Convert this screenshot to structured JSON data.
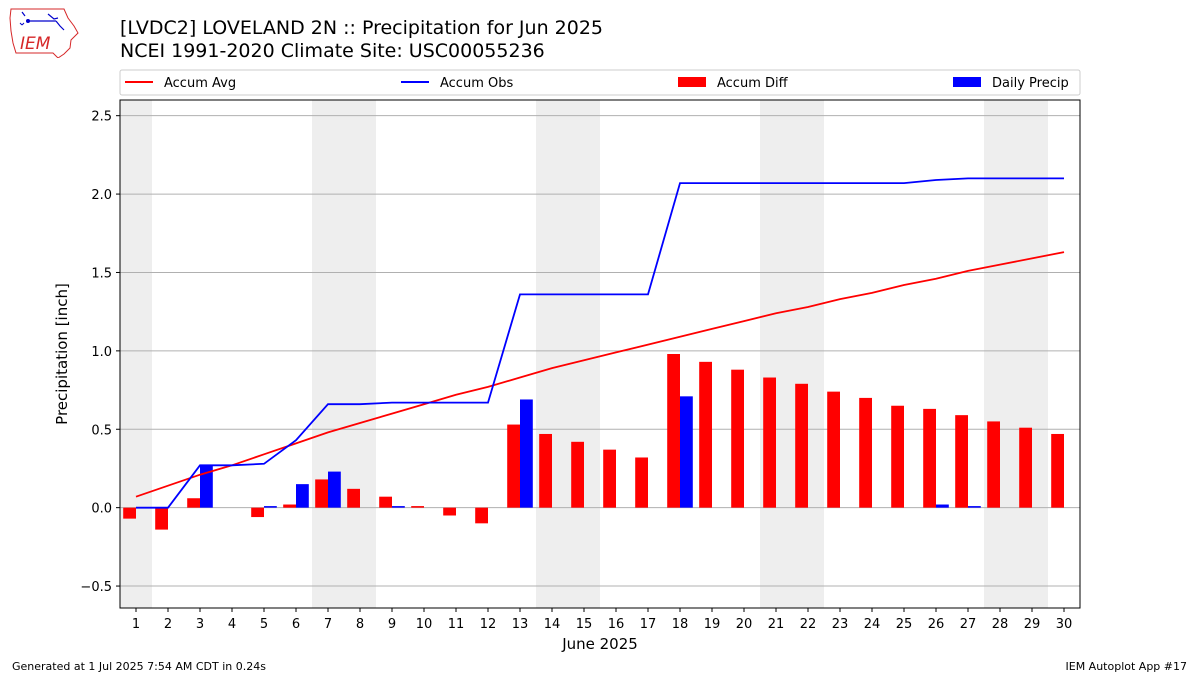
{
  "header": {
    "title_line1": "[LVDC2] LOVELAND 2N :: Precipitation for Jun 2025",
    "title_line2": "NCEI 1991-2020 Climate Site: USC00055236"
  },
  "logo": {
    "text": "IEM",
    "color": "#d62728"
  },
  "footer": {
    "left": "Generated at 1 Jul 2025 7:54 AM CDT in 0.24s",
    "right": "IEM Autoplot App #17"
  },
  "colors": {
    "accum_avg": "#ff0000",
    "accum_obs": "#0000ff",
    "accum_diff": "#ff0000",
    "daily_precip": "#0000ff",
    "weekend_shade": "#eeeeee",
    "grid": "#b0b0b0"
  },
  "chart_data": {
    "type": "bar",
    "xlabel": "June 2025",
    "ylabel": "Precipitation [inch]",
    "ylim": [
      -0.64,
      2.6
    ],
    "yticks": [
      -0.5,
      0.0,
      0.5,
      1.0,
      1.5,
      2.0,
      2.5
    ],
    "ytick_labels": [
      "−0.5",
      "0.0",
      "0.5",
      "1.0",
      "1.5",
      "2.0",
      "2.5"
    ],
    "grid": true,
    "legend_position": "top",
    "weekend_days": [
      1,
      7,
      8,
      14,
      15,
      21,
      22,
      28,
      29
    ],
    "days": [
      1,
      2,
      3,
      4,
      5,
      6,
      7,
      8,
      9,
      10,
      11,
      12,
      13,
      14,
      15,
      16,
      17,
      18,
      19,
      20,
      21,
      22,
      23,
      24,
      25,
      26,
      27,
      28,
      29,
      30
    ],
    "series": [
      {
        "name": "Accum Avg",
        "type": "line",
        "values": [
          0.07,
          0.14,
          0.21,
          0.27,
          0.34,
          0.41,
          0.48,
          0.54,
          0.6,
          0.66,
          0.72,
          0.77,
          0.83,
          0.89,
          0.94,
          0.99,
          1.04,
          1.09,
          1.14,
          1.19,
          1.24,
          1.28,
          1.33,
          1.37,
          1.42,
          1.46,
          1.51,
          1.55,
          1.59,
          1.63
        ]
      },
      {
        "name": "Accum Obs",
        "type": "line",
        "values": [
          0.0,
          0.0,
          0.27,
          0.27,
          0.28,
          0.43,
          0.66,
          0.66,
          0.67,
          0.67,
          0.67,
          0.67,
          1.36,
          1.36,
          1.36,
          1.36,
          1.36,
          2.07,
          2.07,
          2.07,
          2.07,
          2.07,
          2.07,
          2.07,
          2.07,
          2.09,
          2.1,
          2.1,
          2.1,
          2.1
        ]
      },
      {
        "name": "Accum Diff",
        "type": "bar",
        "values": [
          -0.07,
          -0.14,
          0.06,
          0.0,
          -0.06,
          0.02,
          0.18,
          0.12,
          0.07,
          0.01,
          -0.05,
          -0.1,
          0.53,
          0.47,
          0.42,
          0.37,
          0.32,
          0.98,
          0.93,
          0.88,
          0.83,
          0.79,
          0.74,
          0.7,
          0.65,
          0.63,
          0.59,
          0.55,
          0.51,
          0.47
        ]
      },
      {
        "name": "Daily Precip",
        "type": "bar",
        "values": [
          0.0,
          0.0,
          0.27,
          0.0,
          0.01,
          0.15,
          0.23,
          0.0,
          0.01,
          0.0,
          0.0,
          0.0,
          0.69,
          0.0,
          0.0,
          0.0,
          0.0,
          0.71,
          0.0,
          0.0,
          0.0,
          0.0,
          0.0,
          0.0,
          0.0,
          0.02,
          0.01,
          0.0,
          0.0,
          0.0
        ]
      }
    ]
  }
}
